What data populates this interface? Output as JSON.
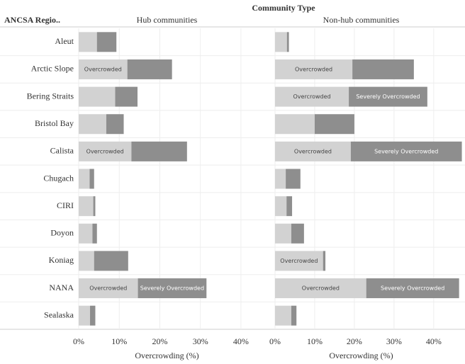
{
  "chart_data": {
    "type": "bar",
    "title": "Community Type",
    "row_header": "ANCSA Regio..",
    "categories": [
      "Aleut",
      "Arctic Slope",
      "Bering Straits",
      "Bristol Bay",
      "Calista",
      "Chugach",
      "CIRI",
      "Doyon",
      "Koniag",
      "NANA",
      "Sealaska"
    ],
    "xlim": [
      0,
      47
    ],
    "xticks": [
      {
        "value": 0,
        "label": "0%"
      },
      {
        "value": 10,
        "label": "10%"
      },
      {
        "value": 20,
        "label": "20%"
      },
      {
        "value": 30,
        "label": "30%"
      },
      {
        "value": 40,
        "label": "40%"
      }
    ],
    "grid": true,
    "panels": [
      {
        "title": "Hub communities",
        "xlabel": "Overcrowding (%)",
        "series": [
          {
            "name": "Overcrowded",
            "color": "#d2d2d2",
            "values": [
              4.5,
              12,
              9,
              6.8,
              13,
              2.7,
              3.6,
              3.4,
              3.8,
              14.6,
              2.8
            ]
          },
          {
            "name": "Severely Overcrowded",
            "color": "#8e8e8e",
            "values": [
              4.8,
              11,
              5.5,
              4.3,
              13.7,
              1.1,
              0.5,
              1.1,
              8.4,
              16.9,
              1.3
            ]
          }
        ]
      },
      {
        "title": "Non-hub communities",
        "xlabel": "Overcrowding (%)",
        "series": [
          {
            "name": "Overcrowded",
            "color": "#d2d2d2",
            "values": [
              3,
              19.5,
              18.6,
              10,
              19.1,
              2.7,
              2.9,
              4.1,
              12.1,
              23,
              4.1
            ]
          },
          {
            "name": "Severely Overcrowded",
            "color": "#8e8e8e",
            "values": [
              0.5,
              15.5,
              19.8,
              10,
              28,
              3.7,
              1.4,
              3.2,
              0.6,
              23.4,
              1.3
            ]
          }
        ]
      }
    ]
  }
}
